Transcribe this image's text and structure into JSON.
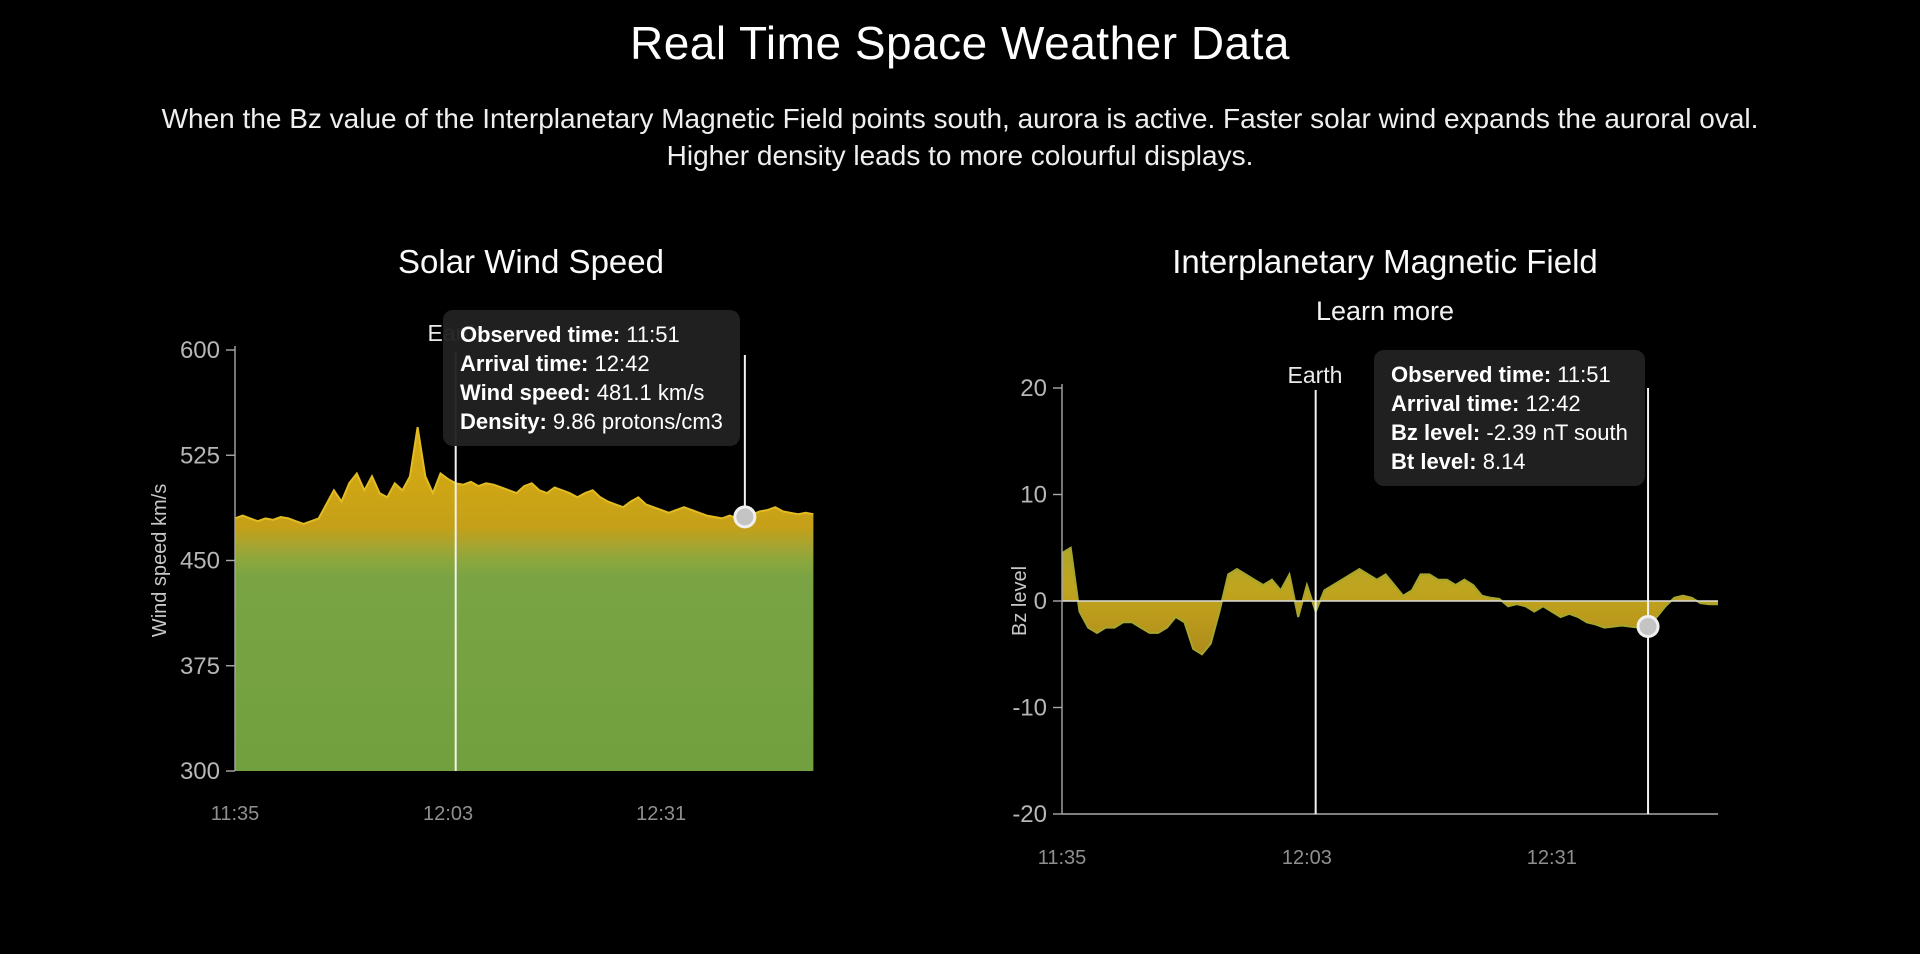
{
  "page": {
    "title": "Real Time Space Weather Data",
    "subtitle": "When the Bz value of the Interplanetary Magnetic Field points south, aurora is active. Faster solar wind expands the auroral oval. Higher density leads to more colourful displays."
  },
  "colors": {
    "background": "#000000",
    "wind_gold": "#d5ab14",
    "wind_green": "#74a23f",
    "imf_olive": "#a8a72c",
    "imf_gold": "#b8921c",
    "tooltip_bg": "#222222",
    "axis": "#a9a9a9",
    "marker_fill": "#c4c4c4"
  },
  "wind": {
    "title": "Solar Wind Speed",
    "earth_label": "Earth",
    "tooltip": {
      "rows": [
        {
          "label": "Observed time:",
          "value": "11:51"
        },
        {
          "label": "Arrival time:",
          "value": "12:42"
        },
        {
          "label": "Wind speed:",
          "value": "481.1 km/s"
        },
        {
          "label": "Density:",
          "value": "9.86 protons/cm3"
        }
      ]
    }
  },
  "imf": {
    "title": "Interplanetary Magnetic Field",
    "link_label": "Learn more",
    "earth_label": "Earth",
    "tooltip": {
      "rows": [
        {
          "label": "Observed time:",
          "value": "11:51"
        },
        {
          "label": "Arrival time:",
          "value": "12:42"
        },
        {
          "label": "Bz level:",
          "value": "-2.39 nT south"
        },
        {
          "label": "Bt level:",
          "value": "8.14"
        }
      ]
    }
  },
  "chart_data": [
    {
      "id": "wind",
      "type": "area",
      "title": "Solar Wind Speed",
      "ylabel": "Wind speed km/s",
      "ylim": [
        300,
        600
      ],
      "yticks": [
        600,
        525,
        450,
        375,
        300
      ],
      "x_start_time": "11:35",
      "x_minutes_per_point": 1,
      "xticks": [
        {
          "minute": 0,
          "label": "11:35"
        },
        {
          "minute": 28,
          "label": "12:03"
        },
        {
          "minute": 56,
          "label": "12:31"
        }
      ],
      "earth_minute": 29,
      "marker": {
        "minute": 67,
        "value": 481.1,
        "observed_time": "11:51",
        "arrival_time": "12:42",
        "density": "9.86 protons/cm3"
      },
      "line_color": "#e3bb22",
      "gradient": [
        [
          "0%",
          "#ddb41a"
        ],
        [
          "30%",
          "#d0a714"
        ],
        [
          "42%",
          "#c5a018"
        ],
        [
          "46%",
          "#a8a42e"
        ],
        [
          "50%",
          "#8ca73e"
        ],
        [
          "54%",
          "#7aa444"
        ],
        [
          "100%",
          "#72a03e"
        ]
      ],
      "values": [
        480,
        482,
        480,
        478,
        480,
        479,
        481,
        480,
        478,
        476,
        478,
        480,
        490,
        500,
        492,
        505,
        512,
        500,
        510,
        498,
        495,
        505,
        500,
        510,
        545,
        510,
        498,
        512,
        508,
        505,
        504,
        506,
        503,
        505,
        504,
        502,
        500,
        498,
        503,
        505,
        500,
        498,
        502,
        500,
        498,
        495,
        498,
        500,
        495,
        492,
        490,
        488,
        492,
        495,
        490,
        488,
        486,
        484,
        486,
        488,
        486,
        484,
        482,
        481,
        480,
        482,
        480,
        481,
        483,
        485,
        486,
        488,
        485,
        484,
        483,
        484,
        483
      ]
    },
    {
      "id": "imf",
      "type": "area",
      "title": "Interplanetary Magnetic Field",
      "ylabel": "Bz level",
      "ylim": [
        -20,
        20
      ],
      "yticks": [
        20,
        10,
        0,
        -10,
        -20
      ],
      "x_start_time": "11:35",
      "x_minutes_per_point": 1,
      "xticks": [
        {
          "minute": 0,
          "label": "11:35"
        },
        {
          "minute": 28,
          "label": "12:03"
        },
        {
          "minute": 56,
          "label": "12:31"
        }
      ],
      "earth_minute": 29,
      "marker": {
        "minute": 67,
        "value": -2.39,
        "observed_time": "11:51",
        "arrival_time": "12:42",
        "bt_level": "8.14"
      },
      "line_color": "#a6a52d",
      "gradient": [
        [
          "0%",
          "#93ad36"
        ],
        [
          "35%",
          "#a8a72c"
        ],
        [
          "47%",
          "#bfa51f"
        ],
        [
          "53%",
          "#bd9c1c"
        ],
        [
          "65%",
          "#a8861a"
        ],
        [
          "100%",
          "#8a6c12"
        ]
      ],
      "values": [
        4.5,
        5,
        -1,
        -2.5,
        -3,
        -2.5,
        -2.5,
        -2,
        -2,
        -2.5,
        -3,
        -3,
        -2.5,
        -1.5,
        -2,
        -4.5,
        -5,
        -4,
        -1,
        2.5,
        3,
        2.5,
        2,
        1.5,
        2,
        1,
        2.5,
        -1.5,
        1.5,
        -1,
        1,
        1.5,
        2,
        2.5,
        3,
        2.5,
        2,
        2.5,
        1.5,
        0.5,
        1,
        2.5,
        2.5,
        2,
        2,
        1.5,
        2,
        1.5,
        0.5,
        0.3,
        0.2,
        -0.5,
        -0.3,
        -0.5,
        -1,
        -0.5,
        -1,
        -1.5,
        -1.2,
        -1.5,
        -2,
        -2.2,
        -2.5,
        -2.4,
        -2.3,
        -2.4,
        -2.5,
        -2.39,
        -1.5,
        -0.5,
        0.3,
        0.5,
        0.3,
        -0.2,
        -0.3,
        -0.3
      ]
    }
  ]
}
